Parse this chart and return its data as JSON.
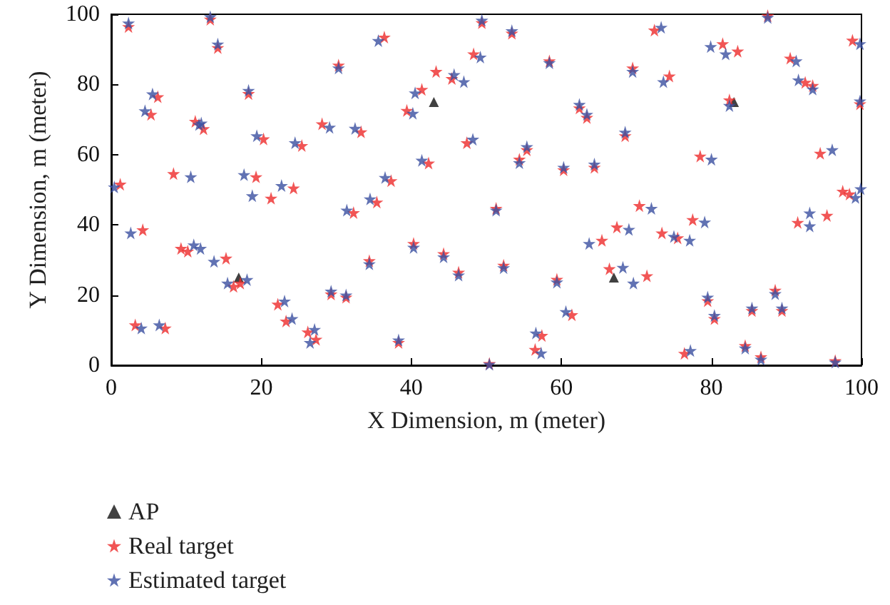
{
  "chart_data": {
    "type": "scatter",
    "xlabel": "X Dimension, m (meter)",
    "ylabel": "Y Dimension, m (meter)",
    "xlim": [
      0,
      100
    ],
    "ylim": [
      0,
      100
    ],
    "xticks": [
      0,
      20,
      40,
      60,
      80,
      100
    ],
    "yticks": [
      0,
      20,
      40,
      60,
      80,
      100
    ],
    "grid": false,
    "legend": "bottom left",
    "series": [
      {
        "name": "AP",
        "color": "#111111",
        "marker": "triangle",
        "x": [
          17,
          43,
          67,
          83
        ],
        "values": [
          25,
          75,
          25,
          75
        ]
      },
      {
        "name": "Real target",
        "color": "#ee2a2a",
        "marker": "star",
        "x": [
          2.3,
          13.2,
          14.2,
          30.3,
          6.2,
          5.3,
          18.3,
          11.2,
          12.3,
          28.1,
          33.3,
          20.3,
          25.4,
          8.3,
          19.3,
          1.2,
          21.3,
          24.3,
          32.3,
          4.2,
          9.3,
          10.2,
          15.3,
          16.3,
          17.2,
          22.2,
          23.3,
          26.2,
          27.3,
          29.3,
          31.3,
          3.2,
          7.2,
          49.4,
          53.4,
          36.4,
          48.3,
          58.4,
          43.3,
          45.4,
          41.4,
          39.4,
          62.4,
          63.4,
          47.4,
          55.4,
          54.4,
          60.3,
          64.4,
          42.3,
          37.3,
          35.4,
          51.3,
          40.3,
          44.3,
          34.4,
          46.3,
          52.3,
          59.4,
          65.4,
          66.4,
          61.4,
          38.3,
          57.4,
          56.5,
          50.4,
          87.5,
          72.4,
          81.5,
          83.5,
          98.8,
          90.5,
          92.5,
          93.5,
          69.5,
          74.4,
          82.4,
          99.8,
          68.5,
          78.5,
          94.5,
          97.5,
          98.4,
          70.4,
          67.4,
          73.4,
          75.5,
          77.5,
          91.5,
          95.4,
          71.4,
          79.5,
          80.4,
          88.5,
          85.4,
          89.4,
          76.4,
          84.5,
          86.6,
          96.5
        ],
        "values": [
          96.5,
          98.6,
          90.5,
          85.5,
          76.5,
          71.5,
          77.4,
          69.5,
          67.4,
          68.8,
          66.5,
          64.5,
          62.6,
          54.6,
          53.7,
          51.6,
          47.6,
          50.5,
          43.5,
          38.6,
          33.3,
          32.5,
          30.5,
          22.5,
          23.4,
          17.4,
          12.6,
          9.5,
          7.4,
          20.3,
          19.4,
          11.5,
          10.6,
          97.6,
          94.6,
          93.5,
          88.7,
          86.7,
          83.7,
          81.7,
          78.6,
          72.6,
          73.3,
          70.6,
          63.4,
          61.4,
          58.7,
          55.7,
          56.4,
          57.6,
          52.6,
          46.5,
          44.7,
          34.7,
          31.8,
          29.8,
          26.5,
          28.5,
          24.5,
          35.6,
          27.5,
          14.4,
          6.5,
          8.5,
          4.5,
          0.5,
          99.6,
          95.5,
          91.6,
          89.5,
          92.6,
          87.5,
          80.6,
          79.7,
          84.7,
          82.4,
          75.6,
          74.5,
          65.4,
          59.6,
          60.4,
          49.6,
          48.8,
          45.5,
          39.4,
          37.7,
          36.3,
          41.5,
          40.7,
          42.7,
          25.5,
          18.4,
          13.3,
          21.4,
          15.6,
          15.6,
          3.4,
          5.6,
          2.4,
          1.3
        ]
      },
      {
        "name": "Estimated target",
        "color": "#3a4fa0",
        "marker": "star",
        "x": [
          2.3,
          13.2,
          14.2,
          30.3,
          5.5,
          4.5,
          18.3,
          11.7,
          12.0,
          29.1,
          32.5,
          19.4,
          24.5,
          10.6,
          17.7,
          0.4,
          18.8,
          22.7,
          31.4,
          2.6,
          11.0,
          11.9,
          13.7,
          15.5,
          18.1,
          23.1,
          24.1,
          27.1,
          26.5,
          29.3,
          31.3,
          4.0,
          6.4,
          49.4,
          53.4,
          35.6,
          49.2,
          58.4,
          45.7,
          47.0,
          40.5,
          40.2,
          62.4,
          63.4,
          48.2,
          55.4,
          54.4,
          60.3,
          64.4,
          41.4,
          36.5,
          34.5,
          51.3,
          40.3,
          44.3,
          34.4,
          46.3,
          52.3,
          59.4,
          63.7,
          68.2,
          60.6,
          38.3,
          56.6,
          57.3,
          50.4,
          87.5,
          73.3,
          79.9,
          81.9,
          99.8,
          91.3,
          91.6,
          93.5,
          69.5,
          73.6,
          82.4,
          99.8,
          68.5,
          80.0,
          96.1,
          99.2,
          99.9,
          72.0,
          69.0,
          75.0,
          77.1,
          79.1,
          93.1,
          93.1,
          69.6,
          79.5,
          80.4,
          88.5,
          85.4,
          89.4,
          77.2,
          84.5,
          86.6,
          96.5
        ],
        "values": [
          97.5,
          99.3,
          91.5,
          84.7,
          77.3,
          72.5,
          78.3,
          68.6,
          69.0,
          67.8,
          67.5,
          65.4,
          63.4,
          53.7,
          54.3,
          50.8,
          48.3,
          51.2,
          44.2,
          37.7,
          34.3,
          33.3,
          29.6,
          23.4,
          24.4,
          18.3,
          13.3,
          10.2,
          6.5,
          21.1,
          20.0,
          10.6,
          11.5,
          98.3,
          95.3,
          92.5,
          87.8,
          86.2,
          82.8,
          80.8,
          77.6,
          71.8,
          74.3,
          71.5,
          64.4,
          62.3,
          57.7,
          56.4,
          57.3,
          58.4,
          53.5,
          47.4,
          44.2,
          33.6,
          30.9,
          28.9,
          25.7,
          27.8,
          23.7,
          34.7,
          27.9,
          15.3,
          7.2,
          9.2,
          3.5,
          0.3,
          99.1,
          96.3,
          90.8,
          88.7,
          91.6,
          86.7,
          81.3,
          78.7,
          83.7,
          80.8,
          74.0,
          75.3,
          66.4,
          58.7,
          61.4,
          47.8,
          50.3,
          44.7,
          38.7,
          36.7,
          35.6,
          40.8,
          39.7,
          43.4,
          23.4,
          19.4,
          14.2,
          20.4,
          16.3,
          16.3,
          4.2,
          4.9,
          1.7,
          0.9
        ]
      }
    ]
  }
}
